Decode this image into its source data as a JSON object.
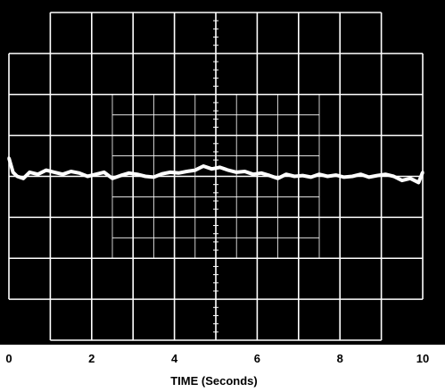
{
  "chart_data": {
    "type": "line",
    "title": "",
    "xlabel": "TIME (Seconds)",
    "ylabel": "",
    "xlim": [
      0,
      10
    ],
    "ylim": [
      -4,
      4
    ],
    "x_ticks": [
      0,
      2,
      4,
      6,
      8,
      10
    ],
    "x_tick_labels": [
      "0",
      "2",
      "4",
      "6",
      "8",
      "10"
    ],
    "grid": true,
    "figure_id": "00304-012",
    "colors": {
      "background": "#000000",
      "grid": "#ffffff",
      "trace": "#ffffff",
      "text": "#000000"
    },
    "series": [
      {
        "x": [
          0,
          0.1,
          0.2,
          0.35,
          0.5,
          0.7,
          0.9,
          1.1,
          1.3,
          1.5,
          1.7,
          1.9,
          2.1,
          2.3,
          2.5,
          2.7,
          2.9,
          3.1,
          3.3,
          3.5,
          3.7,
          3.9,
          4.1,
          4.3,
          4.5,
          4.7,
          4.9,
          5.1,
          5.3,
          5.5,
          5.7,
          5.9,
          6.1,
          6.3,
          6.5,
          6.7,
          6.9,
          7.1,
          7.3,
          7.5,
          7.7,
          7.9,
          8.1,
          8.3,
          8.5,
          8.7,
          8.9,
          9.1,
          9.3,
          9.5,
          9.7,
          9.9,
          10
        ],
        "y": [
          0.45,
          0.1,
          0.0,
          -0.05,
          0.1,
          0.05,
          0.15,
          0.1,
          0.05,
          0.12,
          0.08,
          0.0,
          0.05,
          0.1,
          -0.05,
          0.02,
          0.08,
          0.05,
          0.0,
          -0.02,
          0.06,
          0.1,
          0.08,
          0.12,
          0.15,
          0.25,
          0.18,
          0.22,
          0.15,
          0.1,
          0.12,
          0.05,
          0.08,
          0.02,
          -0.05,
          0.05,
          0.0,
          0.02,
          -0.02,
          0.05,
          0.0,
          0.03,
          -0.02,
          0.0,
          0.05,
          -0.02,
          0.02,
          0.05,
          0.0,
          -0.1,
          -0.05,
          -0.15,
          0.1
        ]
      }
    ]
  }
}
